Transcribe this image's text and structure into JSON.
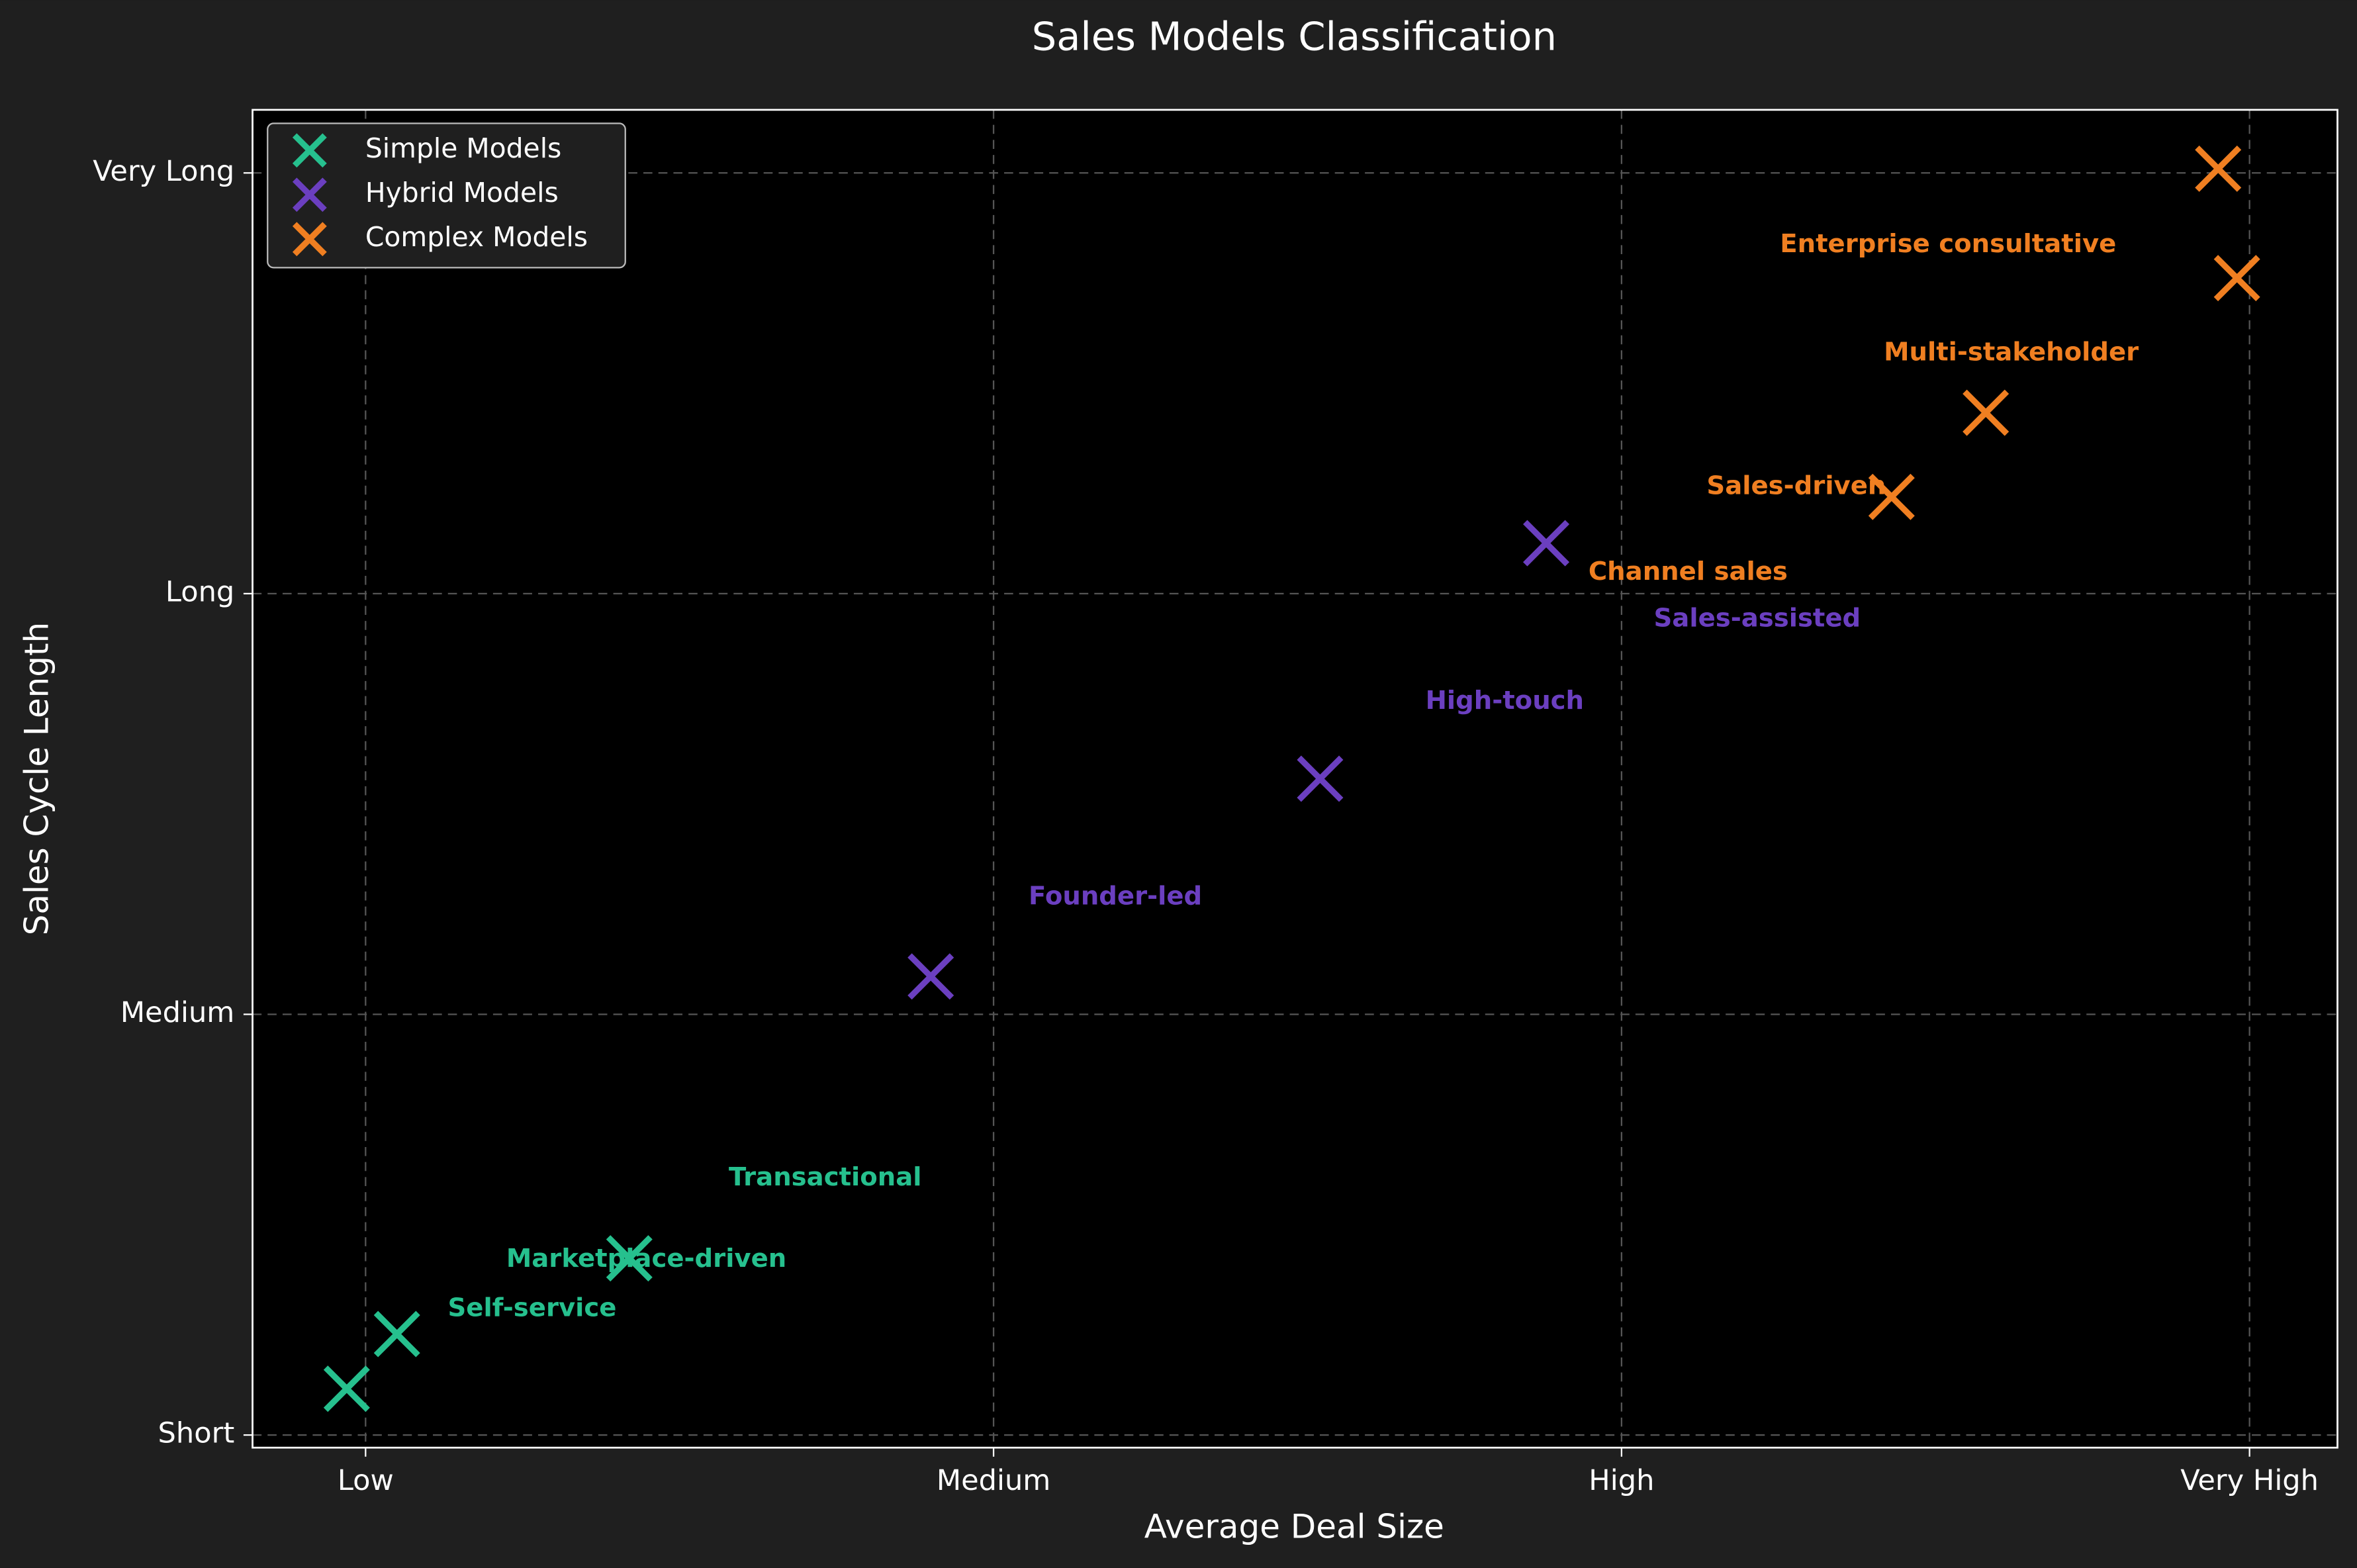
{
  "chart_data": {
    "type": "scatter",
    "title": "Sales Models Classification",
    "x_label": "Average Deal Size",
    "y_label": "Sales Cycle Length",
    "xlim": [
      -0.18,
      3.14
    ],
    "ylim": [
      -0.03,
      3.15
    ],
    "xticks": [
      {
        "value": 0,
        "label": "Low"
      },
      {
        "value": 1,
        "label": "Medium"
      },
      {
        "value": 2,
        "label": "High"
      },
      {
        "value": 3,
        "label": "Very High"
      }
    ],
    "yticks": [
      {
        "value": 0,
        "label": "Short"
      },
      {
        "value": 1,
        "label": "Medium"
      },
      {
        "value": 2,
        "label": "Long"
      },
      {
        "value": 3,
        "label": "Very Long"
      }
    ],
    "grid": true,
    "legend": "upper left",
    "series": [
      {
        "name": "Simple Models",
        "color": "#26c08e",
        "x": [
          -0.03,
          0.05,
          0.42
        ],
        "values": [
          0.11,
          0.24,
          0.42
        ]
      },
      {
        "name": "Hybrid Models",
        "color": "#6b3fc0",
        "x": [
          0.9,
          1.52,
          1.88
        ],
        "values": [
          1.09,
          1.56,
          2.12
        ]
      },
      {
        "name": "Complex Models",
        "color": "#f07f21",
        "x": [
          2.43,
          2.58,
          2.95,
          2.98
        ],
        "values": [
          2.23,
          2.43,
          3.01,
          2.75
        ]
      }
    ],
    "annotations": [
      {
        "text": "Transactional",
        "color": "#26c08e"
      },
      {
        "text": "Marketplace-driven",
        "color": "#26c08e"
      },
      {
        "text": "Self-service",
        "color": "#26c08e"
      },
      {
        "text": "Founder-led",
        "color": "#6b3fc0"
      },
      {
        "text": "High-touch",
        "color": "#6b3fc0"
      },
      {
        "text": "Sales-assisted",
        "color": "#6b3fc0"
      },
      {
        "text": "Channel sales",
        "color": "#f07f21"
      },
      {
        "text": "Sales-driven",
        "color": "#f07f21"
      },
      {
        "text": "Multi-stakeholder",
        "color": "#f07f21"
      },
      {
        "text": "Enterprise consultative",
        "color": "#f07f21"
      }
    ]
  }
}
